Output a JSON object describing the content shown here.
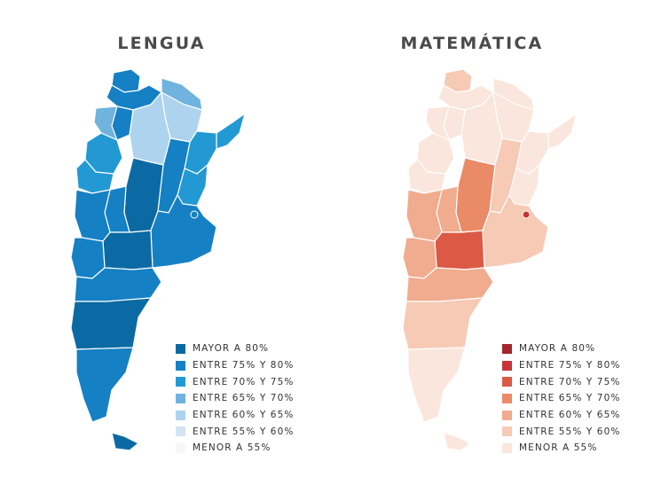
{
  "maps": [
    {
      "title": "LENGUA",
      "legend": [
        {
          "label": "MAYOR A 80%",
          "color": "#0b6aa3"
        },
        {
          "label": "ENTRE 75% Y 80%",
          "color": "#1580c4"
        },
        {
          "label": "ENTRE 70% Y 75%",
          "color": "#2399d3"
        },
        {
          "label": "ENTRE 65% Y 70%",
          "color": "#6fb3de"
        },
        {
          "label": "ENTRE 60% Y 65%",
          "color": "#aed3ef"
        },
        {
          "label": "ENTRE 55% Y 60%",
          "color": "#d3e4f3"
        },
        {
          "label": "MENOR A 55%",
          "color": "#f7f7f7"
        }
      ]
    },
    {
      "title": "MATEMÁTICA",
      "legend": [
        {
          "label": "MAYOR A 80%",
          "color": "#a3262a"
        },
        {
          "label": "ENTRE 75% Y 80%",
          "color": "#c8333a"
        },
        {
          "label": "ENTRE 70% Y 75%",
          "color": "#dc5a45"
        },
        {
          "label": "ENTRE 65% Y 70%",
          "color": "#eb8a67"
        },
        {
          "label": "ENTRE 60% Y 65%",
          "color": "#f1ab8e"
        },
        {
          "label": "ENTRE 55% Y 60%",
          "color": "#f6cab5"
        },
        {
          "label": "MENOR A 55%",
          "color": "#fae6dc"
        }
      ]
    }
  ]
}
